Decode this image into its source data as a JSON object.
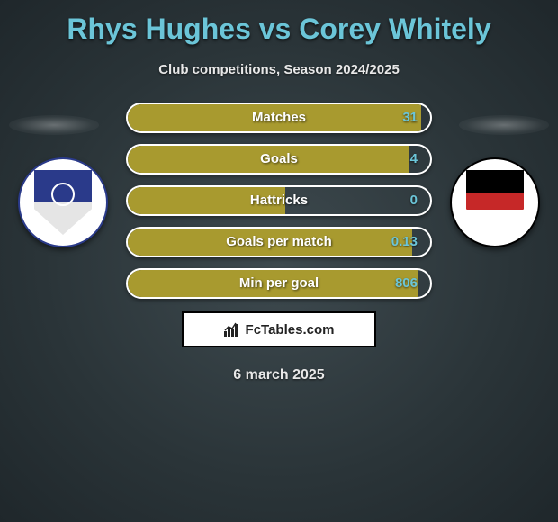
{
  "title": "Rhys Hughes vs Corey Whitely",
  "subtitle": "Club competitions, Season 2024/2025",
  "date": "6 march 2025",
  "brand": "FcTables.com",
  "bar_style": {
    "border_color": "#ffffff",
    "fill_color": "#a89a2f",
    "background_color": "transparent",
    "value_text_color": "#6bc5d8",
    "label_text_color": "#ffffff"
  },
  "title_color": "#6bc5d8",
  "stats": [
    {
      "label": "Matches",
      "value": "31",
      "fill_pct": 97
    },
    {
      "label": "Goals",
      "value": "4",
      "fill_pct": 93
    },
    {
      "label": "Hattricks",
      "value": "0",
      "fill_pct": 52
    },
    {
      "label": "Goals per match",
      "value": "0.13",
      "fill_pct": 94
    },
    {
      "label": "Min per goal",
      "value": "806",
      "fill_pct": 96
    }
  ],
  "clubs": {
    "left": {
      "name": "Tranmere Rovers",
      "primary": "#2a3a8a"
    },
    "right": {
      "name": "Bromley FC",
      "primary": "#000000",
      "accent": "#c62828"
    }
  }
}
